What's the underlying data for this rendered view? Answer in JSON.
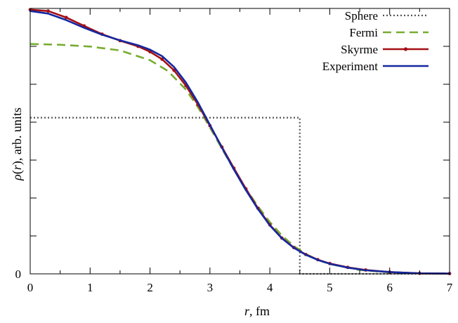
{
  "chart_data": {
    "type": "line",
    "xlim": [
      0,
      7
    ],
    "ylim": [
      0,
      1.03
    ],
    "x_ticks": [
      0,
      1,
      2,
      3,
      4,
      5,
      6,
      7
    ],
    "x_tick_labels": [
      "0",
      "1",
      "2",
      "3",
      "4",
      "5",
      "6",
      "7"
    ],
    "y_ticks": [
      0
    ],
    "y_tick_labels": [
      "0"
    ],
    "xlabel": "r, fm",
    "ylabel": "ρ(r), arb. units",
    "legend_position": "top-right",
    "grid": false,
    "series": [
      {
        "name": "Sphere",
        "color": "#555555",
        "style": "dotted",
        "marker": "none",
        "x": [
          0.0,
          4.5,
          4.5,
          7.0
        ],
        "y": [
          0.606,
          0.606,
          0.0,
          0.0
        ]
      },
      {
        "name": "Fermi",
        "color": "#77ac30",
        "style": "dashed",
        "marker": "none",
        "x": [
          0.0,
          0.5,
          1.0,
          1.5,
          2.0,
          2.3,
          2.6,
          2.8,
          3.0,
          3.2,
          3.4,
          3.6,
          3.8,
          4.0,
          4.2,
          4.4,
          4.6,
          4.8,
          5.0,
          5.5,
          6.0,
          6.5,
          7.0
        ],
        "y": [
          0.892,
          0.889,
          0.882,
          0.867,
          0.829,
          0.787,
          0.715,
          0.647,
          0.568,
          0.486,
          0.405,
          0.33,
          0.262,
          0.201,
          0.149,
          0.108,
          0.077,
          0.054,
          0.038,
          0.015,
          0.006,
          0.002,
          0.001
        ]
      },
      {
        "name": "Skyrme",
        "color": "#a50f15",
        "style": "solid",
        "marker": "dot",
        "x": [
          0.0,
          0.3,
          0.6,
          0.9,
          1.2,
          1.5,
          1.8,
          2.0,
          2.2,
          2.4,
          2.6,
          2.8,
          3.0,
          3.2,
          3.4,
          3.6,
          3.8,
          4.0,
          4.2,
          4.4,
          4.6,
          4.8,
          5.0,
          5.3,
          5.6,
          6.0,
          6.5,
          7.0
        ],
        "y": [
          1.025,
          1.02,
          0.995,
          0.962,
          0.93,
          0.905,
          0.883,
          0.862,
          0.833,
          0.79,
          0.73,
          0.657,
          0.575,
          0.492,
          0.41,
          0.33,
          0.255,
          0.19,
          0.139,
          0.102,
          0.075,
          0.055,
          0.04,
          0.025,
          0.015,
          0.007,
          0.002,
          0.001
        ]
      },
      {
        "name": "Experiment",
        "color": "#1428a0",
        "style": "solid",
        "marker": "none",
        "x": [
          0.0,
          0.3,
          0.6,
          0.9,
          1.2,
          1.5,
          1.8,
          2.0,
          2.2,
          2.4,
          2.6,
          2.8,
          3.0,
          3.2,
          3.4,
          3.6,
          3.8,
          4.0,
          4.2,
          4.4,
          4.6,
          4.8,
          5.0,
          5.3,
          5.6,
          6.0,
          6.5,
          7.0
        ],
        "y": [
          1.02,
          1.01,
          0.985,
          0.955,
          0.928,
          0.906,
          0.887,
          0.87,
          0.845,
          0.803,
          0.742,
          0.665,
          0.578,
          0.49,
          0.405,
          0.325,
          0.252,
          0.188,
          0.138,
          0.101,
          0.074,
          0.054,
          0.039,
          0.024,
          0.014,
          0.007,
          0.002,
          0.001
        ]
      }
    ]
  }
}
